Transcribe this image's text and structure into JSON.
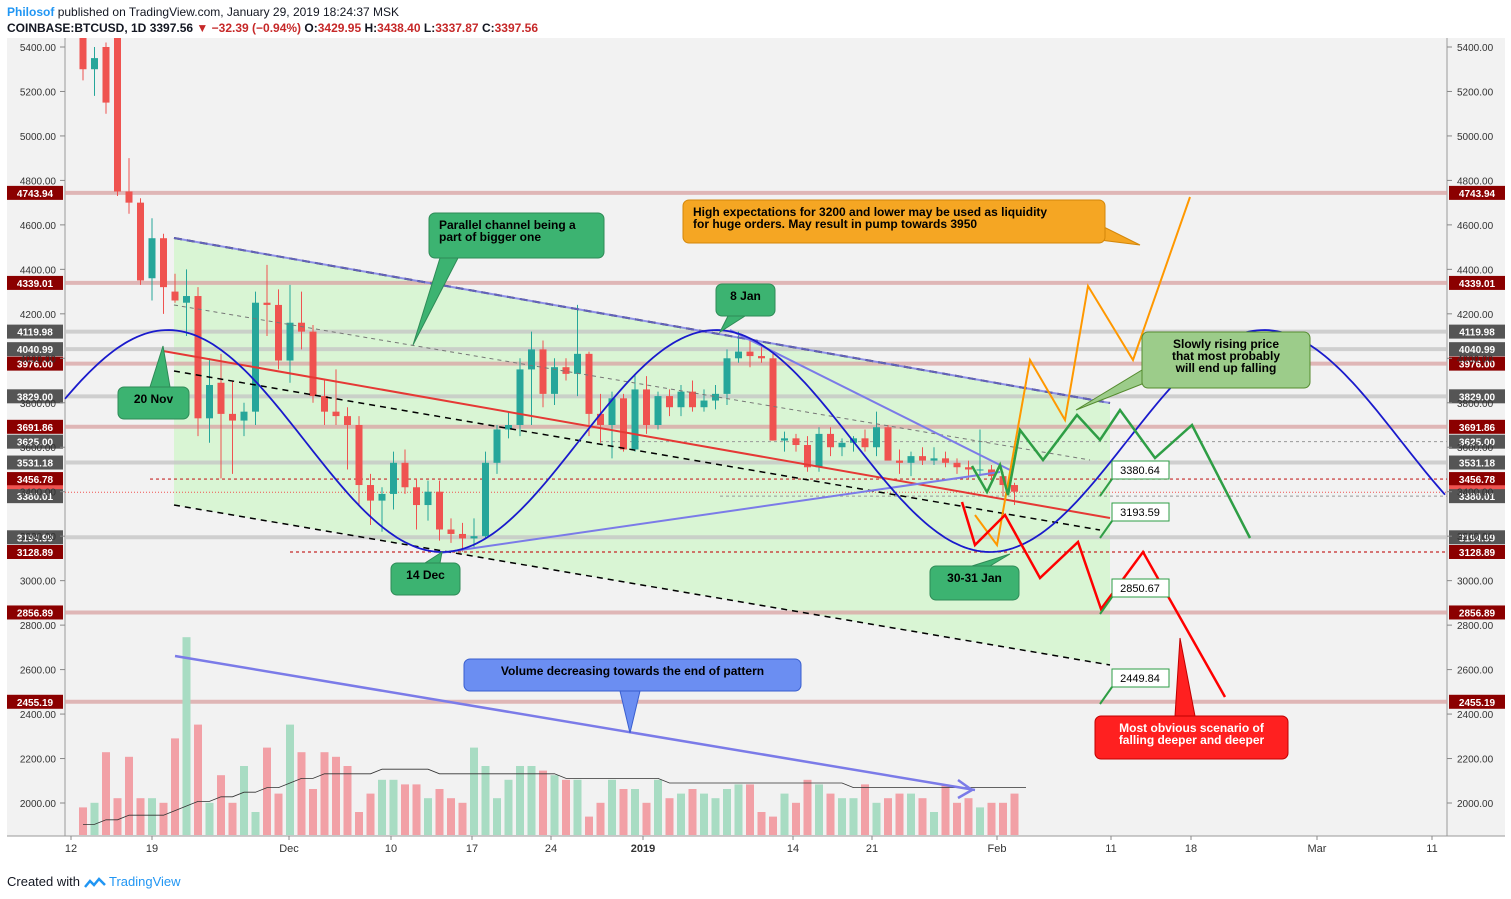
{
  "header": {
    "author": "Philosof",
    "published_text": "published on TradingView.com, January 29, 2019 18:24:37 MSK",
    "symbol": "COINBASE:BTCUSD, 1D",
    "last": "3397.56",
    "change": "−32.39 (−0.94%)",
    "open_label": "O:",
    "open": "3429.95",
    "high_label": "H:",
    "high": "3438.40",
    "low_label": "L:",
    "low": "3337.87",
    "close_label": "C:",
    "close": "3397.56"
  },
  "footer": {
    "created_with": "Created with",
    "brand": "TradingView"
  },
  "colors": {
    "up": "#a8dcc3",
    "up_body": "#26a69a",
    "down": "#ef5350",
    "channel_fill": "#d6f5d0",
    "level_red": "#d9a3a3",
    "level_gray": "#c4c4c4",
    "sine": "#1a1acc"
  },
  "chart_data": {
    "type": "candlestick",
    "x_tick_labels": [
      "12",
      "19",
      "Dec",
      "10",
      "17",
      "24",
      "2019",
      "14",
      "21",
      "Feb",
      "11",
      "18",
      "Mar",
      "11"
    ],
    "y_tick_labels": [
      "2000.00",
      "2200.00",
      "2400.00",
      "2600.00",
      "2800.00",
      "3000.00",
      "3200.00",
      "3400.00",
      "3600.00",
      "3800.00",
      "4000.00",
      "4200.00",
      "4400.00",
      "4600.00",
      "4800.00",
      "5000.00",
      "5200.00",
      "5400.00"
    ],
    "ylim": [
      1860,
      5420
    ],
    "price_levels": [
      {
        "label": "4743.94",
        "value": 4743.94,
        "color": "#8b0000",
        "line": "#d9a3a3"
      },
      {
        "label": "4339.01",
        "value": 4339.01,
        "color": "#8b0000",
        "line": "#d9a3a3"
      },
      {
        "label": "4119.98",
        "value": 4119.98,
        "color": "#555555",
        "line": "#c4c4c4"
      },
      {
        "label": "4040.99",
        "value": 4040.99,
        "color": "#555555",
        "line": "#c4c4c4"
      },
      {
        "label": "3976.00",
        "value": 3976.0,
        "color": "#8b0000",
        "line": "#d9a3a3"
      },
      {
        "label": "3829.00",
        "value": 3829.0,
        "color": "#555555",
        "line": "#c4c4c4"
      },
      {
        "label": "3691.86",
        "value": 3691.86,
        "color": "#8b0000",
        "line": "#d9a3a3"
      },
      {
        "label": "3625.00",
        "value": 3625.0,
        "color": "#555555",
        "line": "dotted"
      },
      {
        "label": "3531.18",
        "value": 3531.18,
        "color": "#555555",
        "line": "#c4c4c4"
      },
      {
        "label": "3456.78",
        "value": 3456.78,
        "color": "#8b0000",
        "line": "dotted-red"
      },
      {
        "label": "3397.56",
        "value": 3397.56,
        "color": "#ef5350",
        "line": "dotted-red-thin"
      },
      {
        "label": "3380.01",
        "value": 3380.01,
        "color": "#555555",
        "line": "dotted"
      },
      {
        "label": "3194.99",
        "value": 3194.99,
        "color": "#555555",
        "line": "#c4c4c4"
      },
      {
        "label": "3128.89",
        "value": 3128.89,
        "color": "#8b0000",
        "line": "dotted-red"
      },
      {
        "label": "2856.89",
        "value": 2856.89,
        "color": "#8b0000",
        "line": "#d9a3a3"
      },
      {
        "label": "2455.19",
        "value": 2455.19,
        "color": "#8b0000",
        "line": "#d9a3a3"
      }
    ],
    "target_labels": [
      "3380.64",
      "3193.59",
      "2850.67",
      "2449.84"
    ],
    "candles": [
      [
        5550,
        5600,
        5250,
        5300
      ],
      [
        5300,
        5400,
        5180,
        5350
      ],
      [
        5400,
        5420,
        5100,
        5150
      ],
      [
        5800,
        5850,
        4730,
        4750
      ],
      [
        4750,
        4900,
        4650,
        4700
      ],
      [
        4700,
        4720,
        4330,
        4350
      ],
      [
        4360,
        4630,
        4260,
        4540
      ],
      [
        4540,
        4560,
        4200,
        4320
      ],
      [
        4300,
        4380,
        4250,
        4260
      ],
      [
        4250,
        4400,
        4100,
        4280
      ],
      [
        4280,
        4320,
        3650,
        3730
      ],
      [
        3730,
        4000,
        3620,
        3880
      ],
      [
        3890,
        4020,
        3460,
        3750
      ],
      [
        3750,
        3900,
        3480,
        3720
      ],
      [
        3720,
        3800,
        3650,
        3760
      ],
      [
        3760,
        4300,
        3700,
        4250
      ],
      [
        4250,
        4420,
        4100,
        4240
      ],
      [
        4240,
        4310,
        3950,
        3990
      ],
      [
        3990,
        4330,
        3890,
        4160
      ],
      [
        4160,
        4300,
        4040,
        4120
      ],
      [
        4120,
        4150,
        3800,
        3830
      ],
      [
        3830,
        3900,
        3700,
        3760
      ],
      [
        3760,
        3950,
        3700,
        3740
      ],
      [
        3740,
        3780,
        3500,
        3700
      ],
      [
        3700,
        3740,
        3340,
        3430
      ],
      [
        3430,
        3480,
        3250,
        3360
      ],
      [
        3360,
        3420,
        3220,
        3390
      ],
      [
        3390,
        3580,
        3320,
        3530
      ],
      [
        3530,
        3590,
        3390,
        3420
      ],
      [
        3420,
        3460,
        3230,
        3340
      ],
      [
        3340,
        3450,
        3270,
        3400
      ],
      [
        3400,
        3450,
        3180,
        3230
      ],
      [
        3230,
        3280,
        3170,
        3210
      ],
      [
        3210,
        3260,
        3130,
        3190
      ],
      [
        3190,
        3280,
        3150,
        3200
      ],
      [
        3200,
        3580,
        3190,
        3530
      ],
      [
        3530,
        3700,
        3480,
        3680
      ],
      [
        3680,
        3760,
        3640,
        3700
      ],
      [
        3700,
        4000,
        3650,
        3950
      ],
      [
        3950,
        4120,
        3700,
        4040
      ],
      [
        4040,
        4080,
        3780,
        3840
      ],
      [
        3840,
        4000,
        3790,
        3960
      ],
      [
        3960,
        4000,
        3900,
        3930
      ],
      [
        3930,
        4240,
        3830,
        4020
      ],
      [
        4020,
        4030,
        3650,
        3750
      ],
      [
        3750,
        3840,
        3620,
        3700
      ],
      [
        3700,
        3850,
        3550,
        3820
      ],
      [
        3820,
        3840,
        3580,
        3590
      ],
      [
        3590,
        3930,
        3580,
        3860
      ],
      [
        3860,
        3920,
        3660,
        3700
      ],
      [
        3700,
        3850,
        3680,
        3830
      ],
      [
        3830,
        3860,
        3740,
        3780
      ],
      [
        3780,
        3880,
        3740,
        3850
      ],
      [
        3850,
        3900,
        3760,
        3780
      ],
      [
        3780,
        3860,
        3760,
        3810
      ],
      [
        3810,
        3880,
        3770,
        3840
      ],
      [
        3840,
        4040,
        3790,
        4000
      ],
      [
        4000,
        4120,
        3980,
        4030
      ],
      [
        4030,
        4080,
        3960,
        4010
      ],
      [
        4010,
        4050,
        3980,
        4000
      ],
      [
        4000,
        4020,
        3630,
        3630
      ],
      [
        3630,
        3670,
        3580,
        3640
      ],
      [
        3640,
        3660,
        3580,
        3610
      ],
      [
        3610,
        3650,
        3490,
        3510
      ],
      [
        3510,
        3690,
        3490,
        3660
      ],
      [
        3660,
        3690,
        3560,
        3600
      ],
      [
        3600,
        3640,
        3560,
        3620
      ],
      [
        3620,
        3650,
        3580,
        3640
      ],
      [
        3640,
        3680,
        3580,
        3600
      ],
      [
        3600,
        3760,
        3560,
        3690
      ],
      [
        3690,
        3700,
        3550,
        3540
      ],
      [
        3540,
        3590,
        3480,
        3530
      ],
      [
        3530,
        3580,
        3470,
        3560
      ],
      [
        3560,
        3600,
        3520,
        3540
      ],
      [
        3540,
        3600,
        3520,
        3550
      ],
      [
        3550,
        3580,
        3510,
        3530
      ],
      [
        3530,
        3550,
        3480,
        3510
      ],
      [
        3510,
        3540,
        3460,
        3500
      ],
      [
        3500,
        3680,
        3470,
        3500
      ],
      [
        3500,
        3520,
        3440,
        3470
      ],
      [
        3470,
        3490,
        3380,
        3430
      ],
      [
        3430,
        3440,
        3340,
        3400
      ]
    ],
    "volume": [
      6,
      7,
      18,
      8,
      17,
      8,
      8,
      7,
      21,
      43,
      24,
      7,
      13,
      7,
      15,
      5,
      19,
      9,
      24,
      18,
      10,
      18,
      17,
      15,
      5,
      9,
      12,
      12,
      11,
      11,
      8,
      10,
      8,
      7,
      19,
      15,
      8,
      12,
      15,
      15,
      14,
      13,
      12,
      12,
      4,
      7,
      12,
      10,
      10,
      7,
      12,
      8,
      9,
      10,
      9,
      8,
      10,
      11,
      11,
      5,
      4,
      9,
      7,
      12,
      11,
      9,
      8,
      8,
      11,
      7,
      8,
      9,
      9,
      8,
      5,
      11,
      7,
      8,
      6,
      7,
      7,
      9,
      6
    ],
    "volume_ma": [
      1,
      1,
      2,
      2,
      3,
      3,
      3,
      3,
      4,
      5,
      6,
      6,
      7,
      7,
      8,
      8,
      9,
      9,
      10,
      11,
      11,
      12,
      12,
      12,
      12,
      12,
      13,
      13,
      13,
      13,
      13,
      12,
      12,
      12,
      12,
      12,
      12,
      12,
      12,
      12,
      12,
      12,
      11,
      11,
      11,
      11,
      11,
      11,
      11,
      11,
      11,
      10,
      10,
      10,
      10,
      10,
      10,
      10,
      10,
      10,
      10,
      10,
      10,
      10,
      10,
      10,
      10,
      9,
      9,
      9,
      9,
      9,
      9,
      9,
      9,
      9,
      9,
      9,
      9,
      9,
      9,
      9,
      9
    ],
    "annotations": [
      {
        "text": "Parallel channel being a part of bigger one"
      },
      {
        "text": "High expectations for 3200 and lower may be used as liquidity for huge orders. May result in pump towards 3950"
      },
      {
        "text": "8 Jan"
      },
      {
        "text": "20 Nov"
      },
      {
        "text": "14 Dec"
      },
      {
        "text": "30-31 Jan"
      },
      {
        "text": "Slowly rising price that most probably will end up falling"
      },
      {
        "text": "Volume decreasing towards the end of pattern"
      },
      {
        "text": "Most obvious scenario of falling deeper and deeper"
      }
    ]
  }
}
